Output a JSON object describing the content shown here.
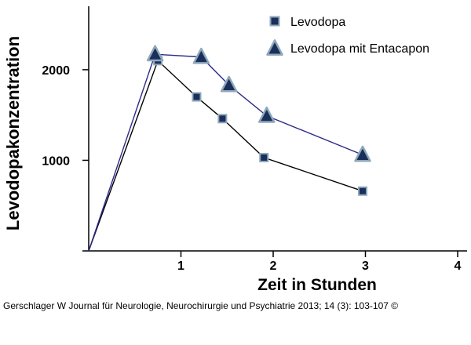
{
  "chart_data": {
    "type": "line",
    "ylabel": "Levodopakonzentration",
    "xlabel": "Zeit in Stunden",
    "xlim": [
      0,
      4
    ],
    "ylim": [
      0,
      2700
    ],
    "x_ticks": [
      1,
      2,
      3,
      4
    ],
    "y_ticks": [
      1000,
      2000
    ],
    "legend_placement": "top-right",
    "grid": false,
    "series": [
      {
        "name": "Levodopa",
        "marker": "square",
        "line_color": "#000000",
        "marker_fill": "#1a2f5a",
        "marker_edge": "#8fa7bb",
        "points": [
          {
            "x": 0,
            "y": 0
          },
          {
            "x": 0.75,
            "y": 2100
          },
          {
            "x": 1.17,
            "y": 1700
          },
          {
            "x": 1.45,
            "y": 1460
          },
          {
            "x": 1.9,
            "y": 1030
          },
          {
            "x": 2.97,
            "y": 660
          }
        ]
      },
      {
        "name": "Levodopa mit Entacapon",
        "marker": "triangle",
        "line_color": "#2a2a8a",
        "marker_fill": "#1a2f5a",
        "marker_edge": "#8fa7bb",
        "points": [
          {
            "x": 0,
            "y": 0
          },
          {
            "x": 0.72,
            "y": 2170
          },
          {
            "x": 1.22,
            "y": 2140
          },
          {
            "x": 1.52,
            "y": 1830
          },
          {
            "x": 1.93,
            "y": 1490
          },
          {
            "x": 2.97,
            "y": 1060
          }
        ]
      }
    ]
  },
  "footer": {
    "credit": "Gerschlager W Journal für Neurologie, Neurochirurgie und Psychiatrie 2013; 14 (3): 103-107 ©"
  }
}
